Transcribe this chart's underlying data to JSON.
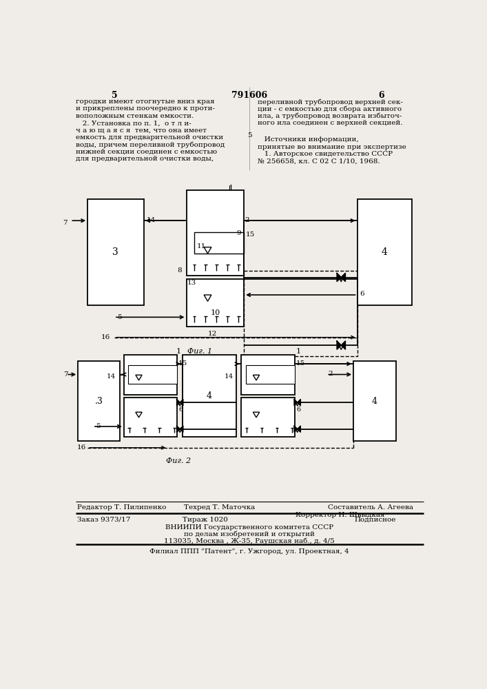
{
  "bg_color": "#f0ede8",
  "patent_number": "791606",
  "left_page_num": "5",
  "right_page_num": "6",
  "col1_text": [
    "городки имеют отогнутые вниз края",
    "и прикреплены поочередно к проти-",
    "воположным стенкам емкости.",
    "   2. Установка по п. 1,  о т л и-",
    "ч а ю щ а я с я  тем, что она имеет",
    "емкость для предварительной очистки",
    "воды, причем переливной трубопровод",
    "нижней секции соединен с емкостью",
    "для предварительной очистки воды,"
  ],
  "col2_text_top": [
    "переливной трубопровод верхней сек-",
    "ции - с емкостью для сбора активного",
    "ила, а трубопровод возврата избыточ-",
    "ного ила соединен с верхней секцией."
  ],
  "col2_text_mid": [
    "   Источники информации,",
    "принятые во внимание при экспертизе",
    "   1. Авторское свидетельство СССР",
    "№ 256658, кл. С 02 С 1/10, 1968."
  ],
  "col2_line_num": "5",
  "fig1_caption": "Фиг. 1",
  "fig2_caption": "Фиг. 2",
  "sestavitel_line": "Составитель А. Агеева",
  "editor_label": "Редактор Т. Пилипенко",
  "tehred_label": "Техред Т. Маточка",
  "korrektor_label": "Корректор Н. Швыдкая",
  "order_label": "Заказ 9373/17",
  "tirazh_label": "Тираж 1020",
  "podpisnoe_label": "Подписное",
  "institute_line1": "ВНИИПИ Государственного комитета СССР",
  "institute_line2": "по делам изобретений и открытий",
  "institute_line3": "113035, Москва , Ж-35, Раушская наб., д. 4/5",
  "branch_line": "Филиал ППП \"Патент\", г. Ужгород, ул. Проектная, 4"
}
